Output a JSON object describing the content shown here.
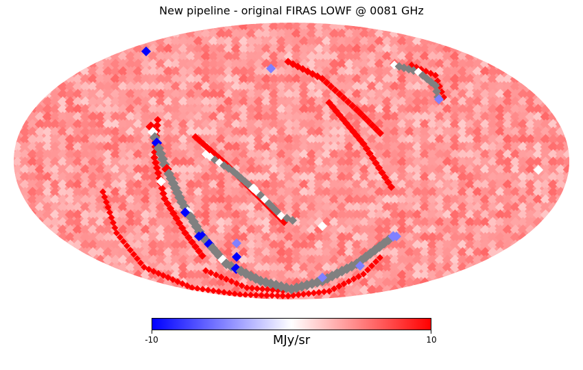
{
  "chart_data": {
    "type": "heatmap",
    "projection": "Mollweide",
    "title": "New pipeline - original FIRAS LOWF @ 0081 GHz",
    "colorbar": {
      "label": "MJy/sr",
      "min": -10,
      "max": 10,
      "min_label": "-10",
      "max_label": "10",
      "colormap": [
        "#0000ff",
        "#ffffff",
        "#ff0000"
      ]
    },
    "bad_pixel_color": "#808080",
    "background_value_range": [
      2,
      6
    ]
  }
}
